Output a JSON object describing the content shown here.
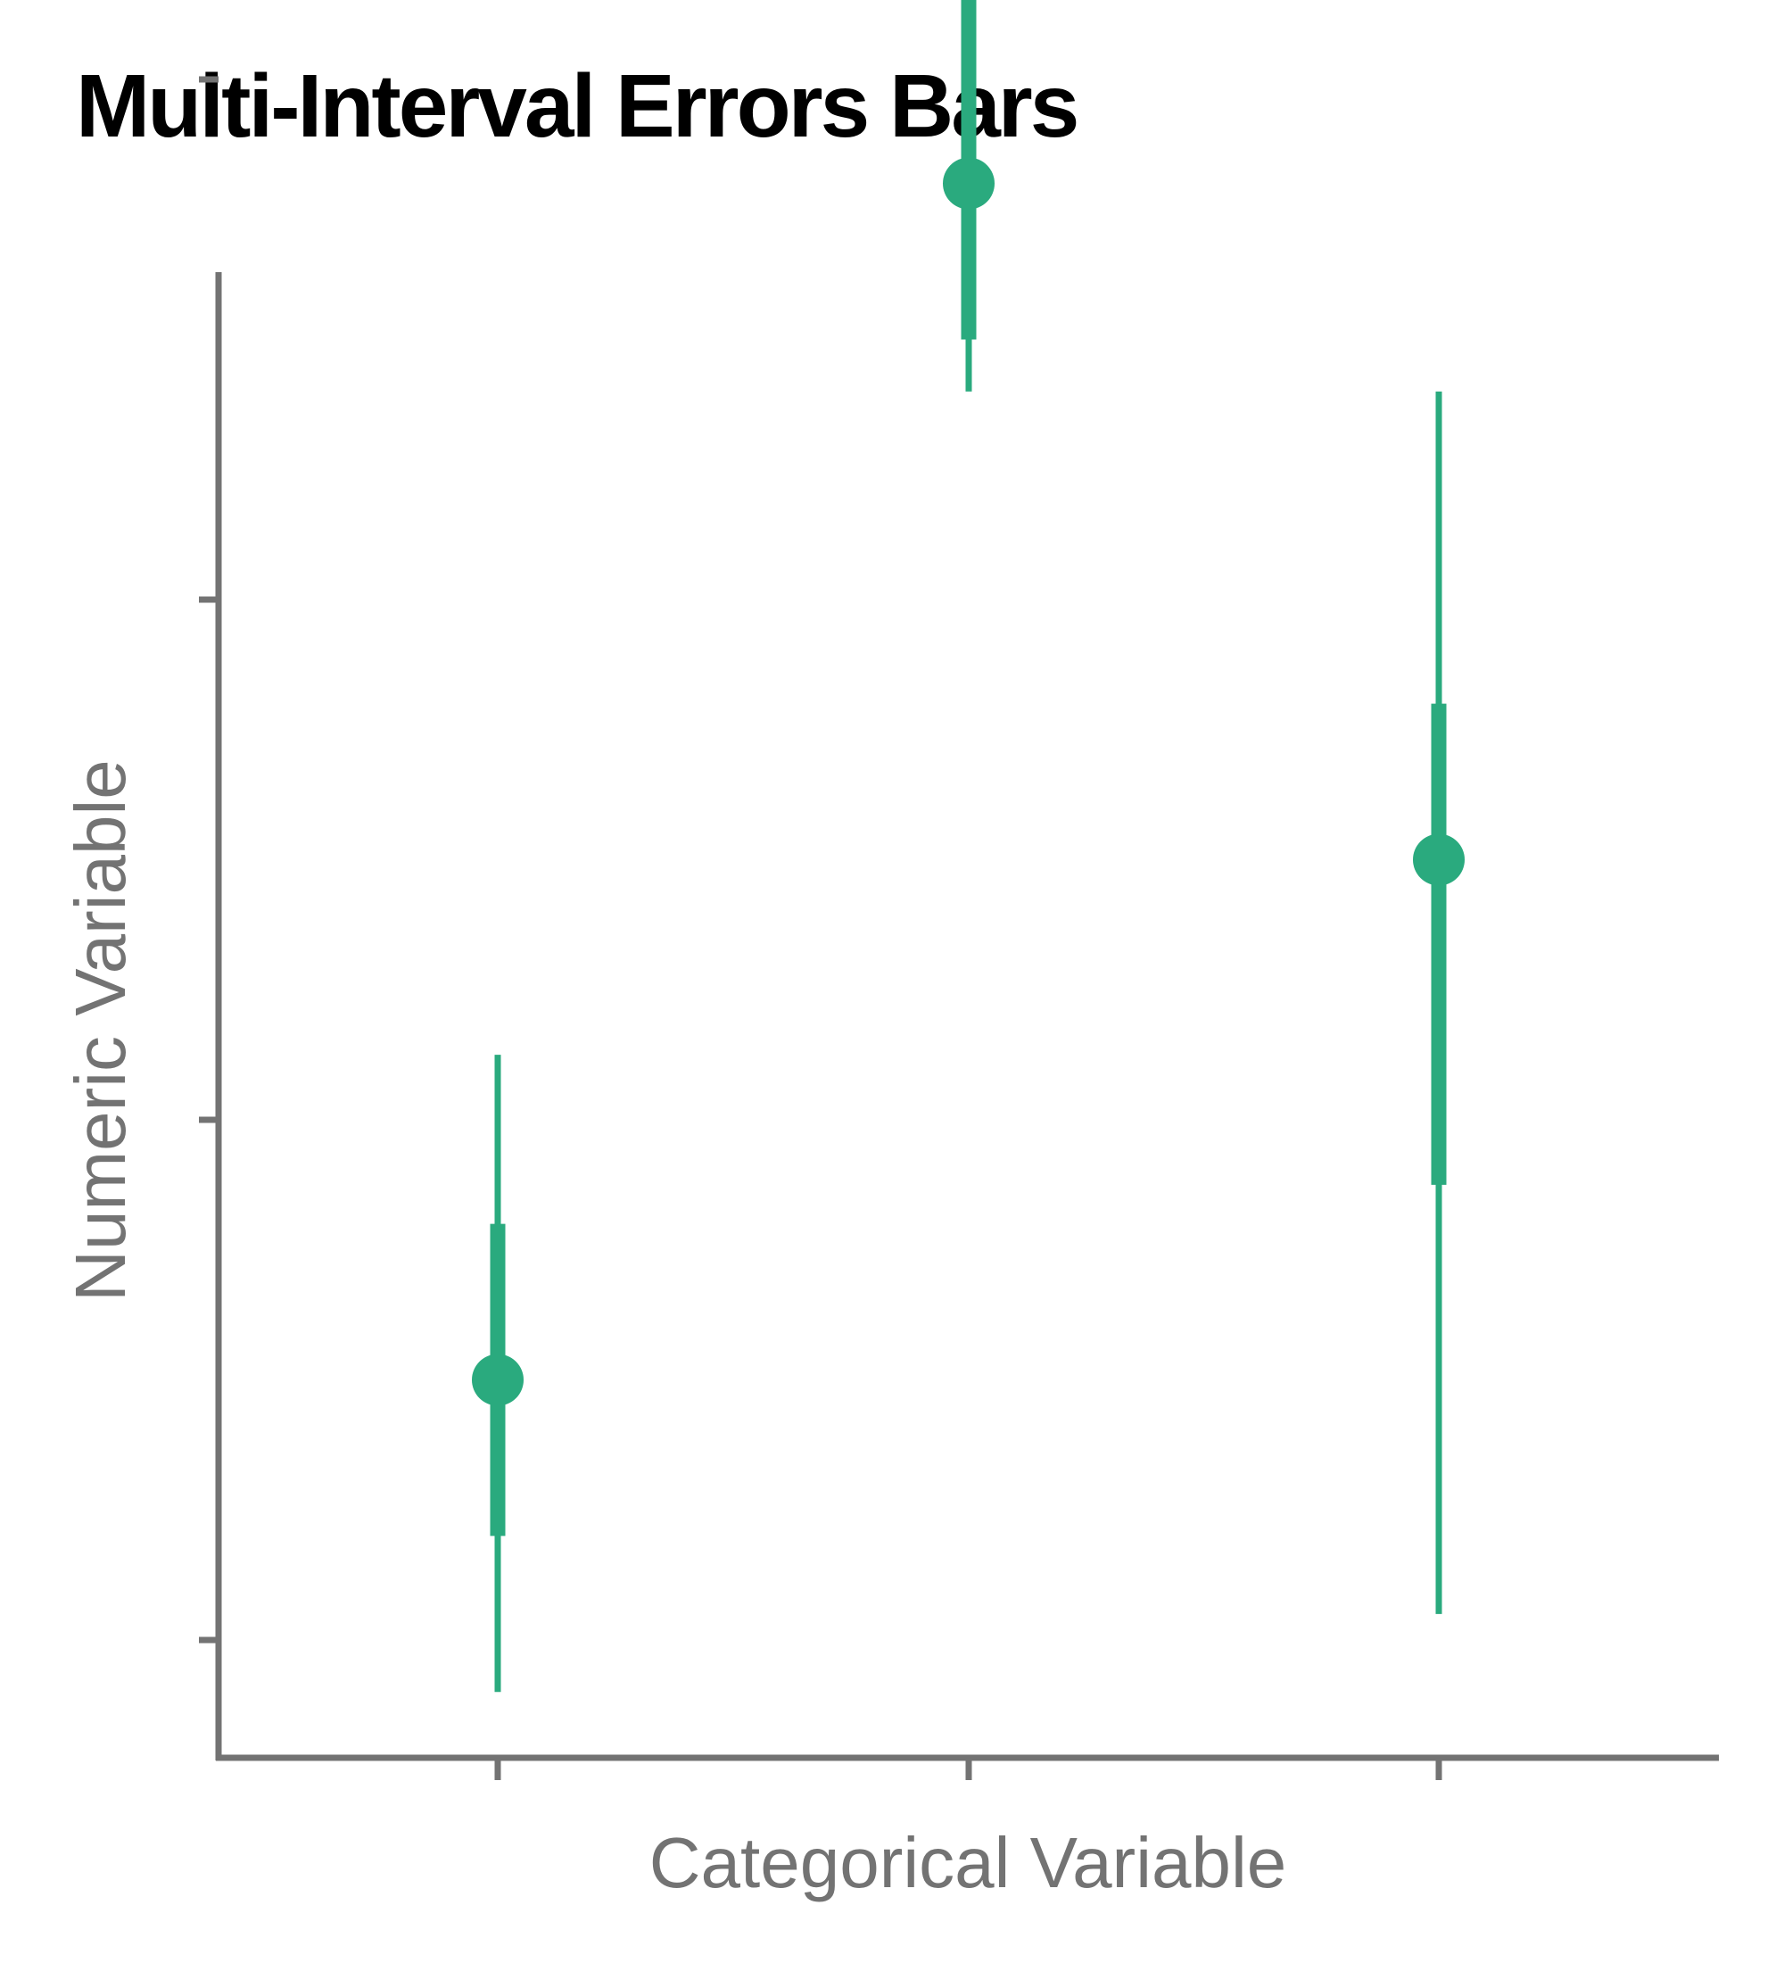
{
  "colors": {
    "accent": "#2aaa7e",
    "axis": "#737373",
    "title": "#000000"
  },
  "chart_data": {
    "type": "errorbar",
    "title": "Multi-Interval Errors Bars",
    "xlabel": "Categorical Variable",
    "ylabel": "Numeric Variable",
    "ylim": [
      0,
      11
    ],
    "y_ticks": [
      1,
      3,
      5,
      7,
      9,
      11
    ],
    "grid": false,
    "points": [
      {
        "y": 2,
        "inner": [
          1.4,
          2.6
        ],
        "outer": [
          0.8,
          3.25
        ]
      },
      {
        "y": 6.6,
        "inner": [
          6,
          7.4
        ],
        "outer": [
          5.8,
          8.6
        ]
      },
      {
        "y": 4,
        "inner": [
          2.75,
          4.6
        ],
        "outer": [
          1.1,
          5.8
        ]
      }
    ]
  }
}
